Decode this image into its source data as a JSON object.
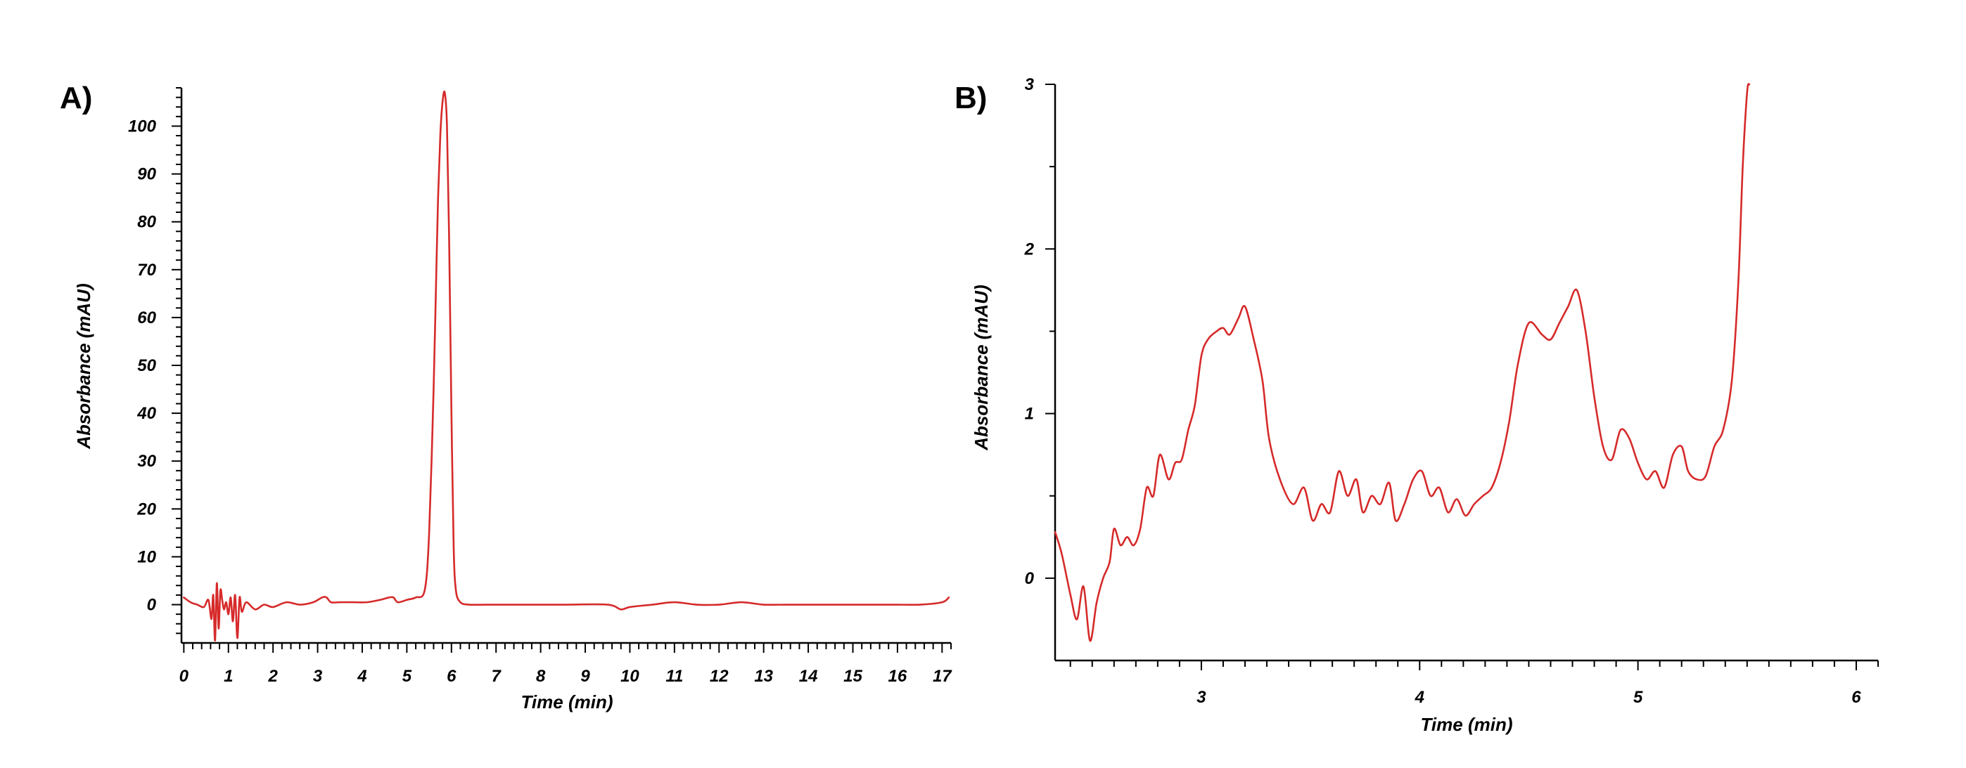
{
  "colors": {
    "trace": "#d62a2a",
    "axis": "#000000"
  },
  "chart_data": [
    {
      "type": "line",
      "panel_label": "A)",
      "xlabel": "Time (min)",
      "ylabel": "Absorbance (mAU)",
      "xlim": [
        -0.1,
        17.2
      ],
      "ylim": [
        -8,
        108
      ],
      "x_ticks": [
        0,
        1,
        2,
        3,
        4,
        5,
        6,
        7,
        8,
        9,
        10,
        11,
        12,
        13,
        14,
        15,
        16,
        17
      ],
      "y_ticks": [
        0,
        10,
        20,
        30,
        40,
        50,
        60,
        70,
        80,
        90,
        100
      ],
      "x_minor_step": 0.2,
      "y_minor_step": 2,
      "grid": false,
      "legend": "none",
      "series": [
        {
          "x": [
            0,
            0.15,
            0.3,
            0.45,
            0.55,
            0.62,
            0.66,
            0.7,
            0.74,
            0.78,
            0.82,
            0.86,
            0.9,
            0.95,
            1.0,
            1.05,
            1.1,
            1.15,
            1.2,
            1.25,
            1.3,
            1.4,
            1.6,
            1.8,
            2.0,
            2.3,
            2.6,
            2.9,
            3.1,
            3.2,
            3.3,
            3.5,
            3.8,
            4.1,
            4.4,
            4.6,
            4.7,
            4.8,
            5.0,
            5.2,
            5.4,
            5.5,
            5.6,
            5.65,
            5.7,
            5.75,
            5.8,
            5.85,
            5.9,
            5.95,
            6.0,
            6.05,
            6.1,
            6.2,
            6.4,
            6.8,
            7.5,
            8.5,
            9.5,
            9.8,
            10.0,
            10.5,
            11.0,
            11.5,
            12.0,
            12.5,
            13.0,
            13.5,
            14.0,
            14.5,
            15.0,
            15.5,
            16.0,
            16.5,
            17.0,
            17.15
          ],
          "y": [
            1.5,
            0.5,
            0.0,
            -0.5,
            1.0,
            -3.0,
            2.0,
            -7.5,
            4.5,
            -5.0,
            3.0,
            1.0,
            -1.0,
            0.5,
            -2.0,
            1.5,
            -3.5,
            2.0,
            -7.0,
            1.5,
            -1.5,
            0.5,
            -1.0,
            0.0,
            -0.5,
            0.5,
            0.0,
            0.5,
            1.5,
            1.5,
            0.5,
            0.5,
            0.5,
            0.5,
            1.0,
            1.5,
            1.5,
            0.5,
            1.0,
            1.5,
            3.0,
            15.0,
            45.0,
            65.0,
            85.0,
            98.0,
            105.0,
            107.0,
            100.0,
            75.0,
            40.0,
            12.0,
            3.0,
            0.5,
            0.0,
            0.0,
            0.0,
            0.0,
            0.0,
            -1.0,
            -0.5,
            0.0,
            0.5,
            0.0,
            0.0,
            0.5,
            0.0,
            0.0,
            0.0,
            0.0,
            0.0,
            0.0,
            0.0,
            0.0,
            0.5,
            1.5
          ]
        }
      ]
    },
    {
      "type": "line",
      "panel_label": "B)",
      "xlabel": "Time (min)",
      "ylabel": "Absorbance (mAU)",
      "xlim": [
        2.33,
        6.1
      ],
      "ylim": [
        -0.5,
        3.0
      ],
      "x_ticks": [
        3,
        4,
        5,
        6
      ],
      "y_ticks": [
        0,
        1,
        2,
        3
      ],
      "x_minor_step": 0.1,
      "y_minor_step": 0.5,
      "grid": false,
      "legend": "none",
      "series": [
        {
          "x": [
            2.33,
            2.36,
            2.4,
            2.43,
            2.46,
            2.49,
            2.52,
            2.55,
            2.58,
            2.6,
            2.63,
            2.66,
            2.69,
            2.72,
            2.75,
            2.78,
            2.81,
            2.85,
            2.88,
            2.91,
            2.94,
            2.97,
            3.0,
            3.03,
            3.07,
            3.1,
            3.13,
            3.17,
            3.2,
            3.24,
            3.28,
            3.31,
            3.36,
            3.42,
            3.47,
            3.51,
            3.55,
            3.59,
            3.63,
            3.67,
            3.71,
            3.74,
            3.78,
            3.82,
            3.86,
            3.89,
            3.93,
            3.97,
            4.01,
            4.05,
            4.09,
            4.13,
            4.17,
            4.21,
            4.25,
            4.29,
            4.33,
            4.37,
            4.41,
            4.45,
            4.5,
            4.56,
            4.6,
            4.64,
            4.68,
            4.72,
            4.76,
            4.8,
            4.84,
            4.88,
            4.92,
            4.96,
            5.0,
            5.04,
            5.08,
            5.12,
            5.16,
            5.2,
            5.23,
            5.27,
            5.31,
            5.35,
            5.39,
            5.43,
            5.46,
            5.48,
            5.5,
            5.51
          ],
          "y": [
            0.28,
            0.15,
            -0.1,
            -0.25,
            -0.05,
            -0.38,
            -0.15,
            0.0,
            0.1,
            0.3,
            0.2,
            0.25,
            0.2,
            0.3,
            0.55,
            0.5,
            0.75,
            0.6,
            0.7,
            0.72,
            0.9,
            1.05,
            1.35,
            1.45,
            1.5,
            1.52,
            1.48,
            1.58,
            1.65,
            1.45,
            1.2,
            0.85,
            0.6,
            0.45,
            0.55,
            0.35,
            0.45,
            0.4,
            0.65,
            0.5,
            0.6,
            0.4,
            0.5,
            0.45,
            0.58,
            0.35,
            0.45,
            0.6,
            0.65,
            0.5,
            0.55,
            0.4,
            0.48,
            0.38,
            0.45,
            0.5,
            0.55,
            0.7,
            0.95,
            1.3,
            1.55,
            1.48,
            1.45,
            1.55,
            1.65,
            1.75,
            1.5,
            1.1,
            0.8,
            0.72,
            0.9,
            0.85,
            0.7,
            0.6,
            0.65,
            0.55,
            0.75,
            0.8,
            0.65,
            0.6,
            0.62,
            0.8,
            0.9,
            1.2,
            1.8,
            2.5,
            2.95,
            3.0
          ]
        }
      ]
    }
  ]
}
